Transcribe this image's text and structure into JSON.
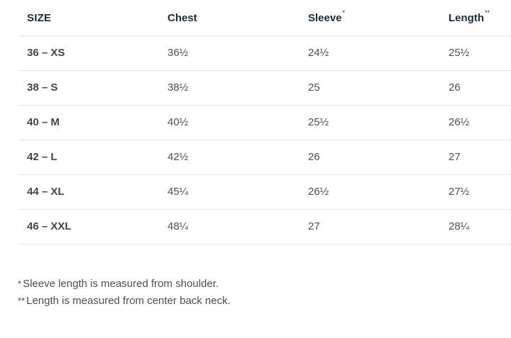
{
  "table": {
    "headers": [
      {
        "label": "SIZE",
        "mark": ""
      },
      {
        "label": "Chest",
        "mark": ""
      },
      {
        "label": "Sleeve",
        "mark": "*"
      },
      {
        "label": "Length",
        "mark": "**"
      }
    ],
    "rows": [
      [
        "36 – XS",
        "36½",
        "24½",
        "25½"
      ],
      [
        "38 – S",
        "38½",
        "25",
        "26"
      ],
      [
        "40 – M",
        "40½",
        "25½",
        "26½"
      ],
      [
        "42 – L",
        "42½",
        "26",
        "27"
      ],
      [
        "44 – XL",
        "45¼",
        "26½",
        "27½"
      ],
      [
        "46 – XXL",
        "48¼",
        "27",
        "28¼"
      ]
    ]
  },
  "footnotes": [
    {
      "mark": "*",
      "text": "Sleeve length is measured from shoulder."
    },
    {
      "mark": "**",
      "text": "Length is measured from center back neck."
    }
  ]
}
